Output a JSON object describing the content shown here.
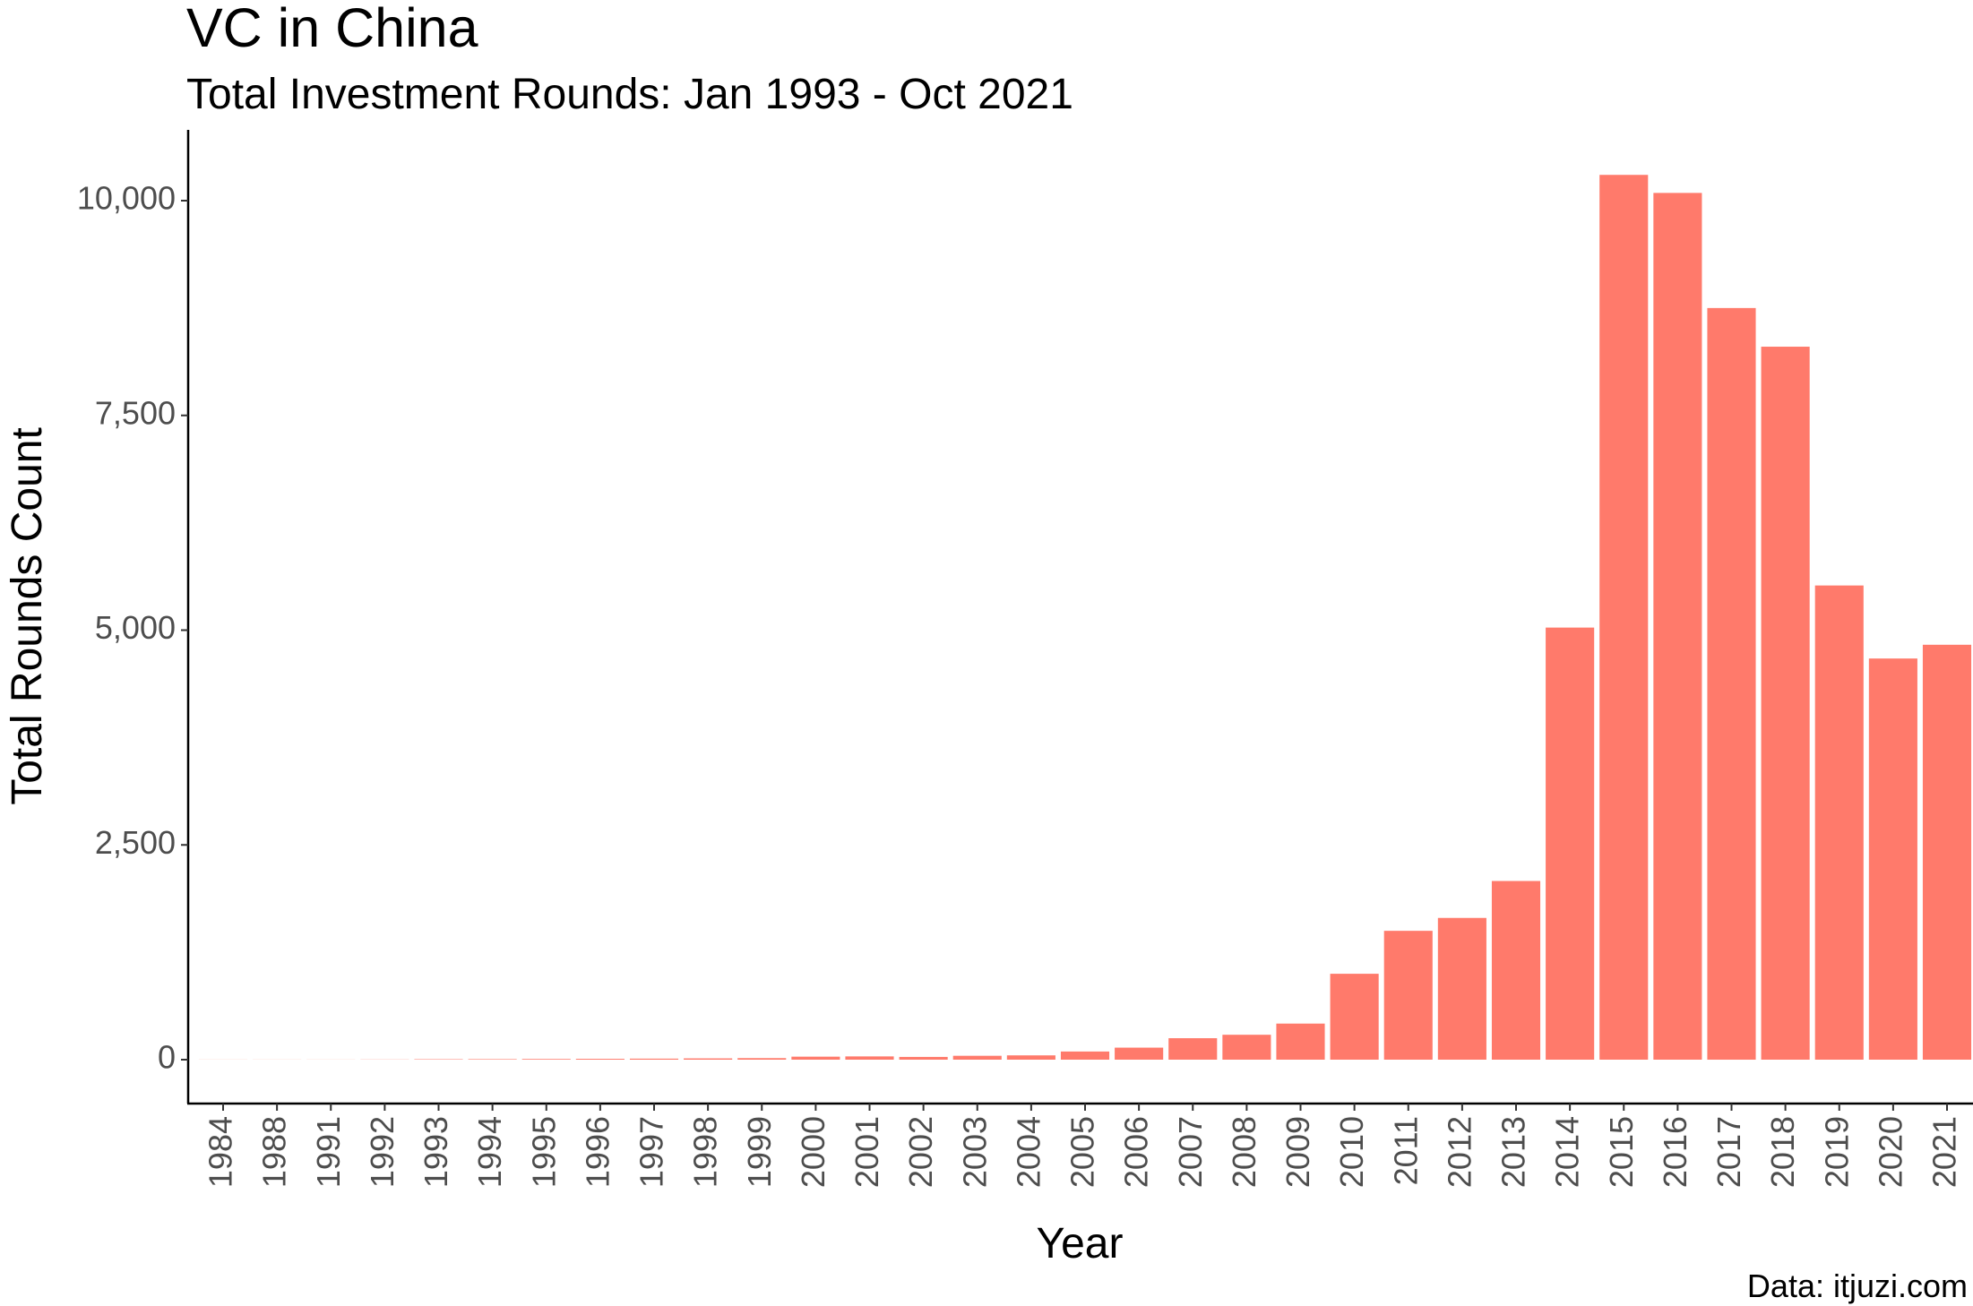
{
  "colors": {
    "bar": "#FF7A6B",
    "axis": "#000000",
    "tick_text": "#4d4d4d",
    "background": "#ffffff"
  },
  "chart_data": {
    "type": "bar",
    "title": "VC in China",
    "subtitle": "Total Investment Rounds: Jan 1993 - Oct 2021",
    "xlabel": "Year",
    "ylabel": "Total Rounds Count",
    "caption": "Data: itjuzi.com",
    "categories": [
      "1984",
      "1988",
      "1991",
      "1992",
      "1993",
      "1994",
      "1995",
      "1996",
      "1997",
      "1998",
      "1999",
      "2000",
      "2001",
      "2002",
      "2003",
      "2004",
      "2005",
      "2006",
      "2007",
      "2008",
      "2009",
      "2010",
      "2011",
      "2012",
      "2013",
      "2014",
      "2015",
      "2016",
      "2017",
      "2018",
      "2019",
      "2020",
      "2021"
    ],
    "values": [
      1,
      1,
      1,
      2,
      5,
      6,
      8,
      10,
      12,
      15,
      18,
      35,
      38,
      32,
      45,
      50,
      95,
      140,
      250,
      290,
      420,
      1000,
      1500,
      1650,
      2080,
      5030,
      10300,
      10090,
      8750,
      8300,
      5520,
      4670,
      4830
    ],
    "yticks": [
      0,
      2500,
      5000,
      7500,
      10000
    ],
    "ytick_labels": [
      "0",
      "2,500",
      "5,000",
      "7,500",
      "10,000"
    ],
    "ylim": [
      -500,
      10800
    ],
    "grid": false,
    "legend": "none"
  }
}
